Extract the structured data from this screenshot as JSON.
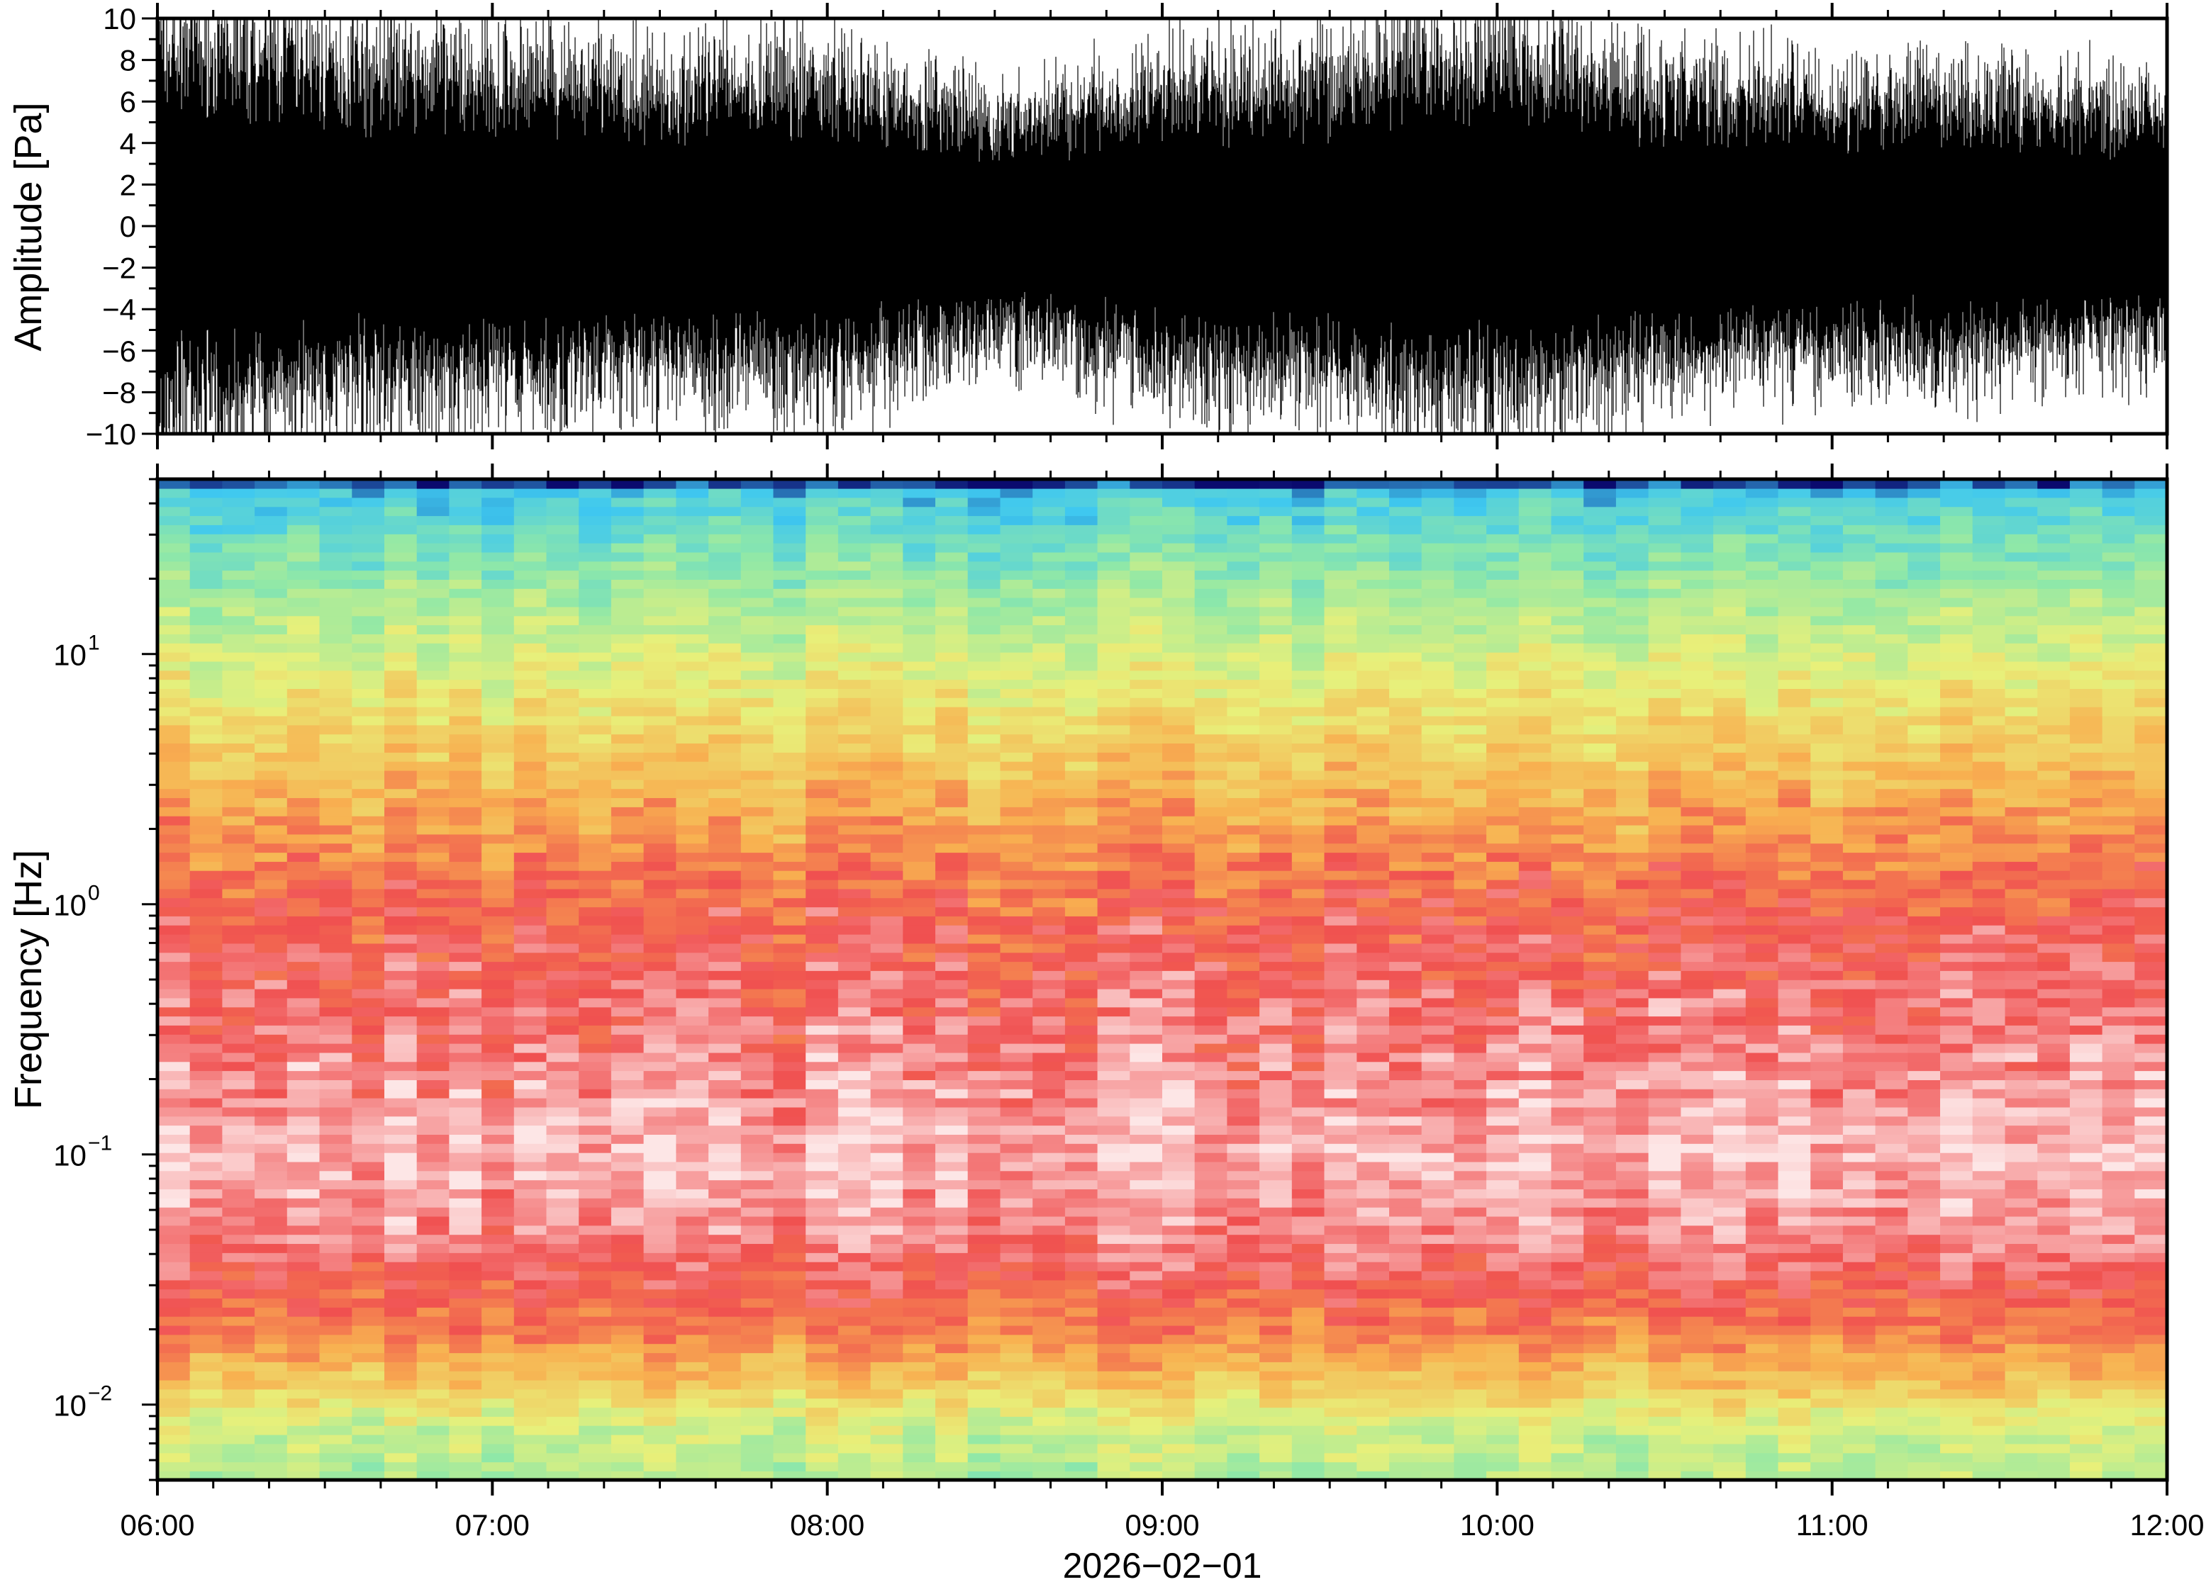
{
  "chart_data": [
    {
      "type": "line",
      "title": "",
      "ylabel": "Amplitude [Pa]",
      "ylim": [
        -10,
        10
      ],
      "yticks": [
        "10",
        "8",
        "6",
        "4",
        "2",
        "0",
        "−2",
        "−4",
        "−6",
        "−8",
        "−10"
      ],
      "ytick_values": [
        10,
        8,
        6,
        4,
        2,
        0,
        -2,
        -4,
        -6,
        -8,
        -10
      ],
      "x_range_hours": [
        6,
        12
      ],
      "envelope_hours": [
        6.0,
        6.5,
        7.0,
        7.5,
        8.0,
        8.5,
        9.0,
        9.5,
        10.0,
        10.5,
        11.0,
        11.5,
        12.0
      ],
      "envelope_pa": [
        8,
        7,
        6.5,
        6,
        6.5,
        4.5,
        6,
        6.5,
        7.5,
        6,
        5.5,
        5.5,
        5
      ]
    },
    {
      "type": "heatmap",
      "ylabel": "Frequency [Hz]",
      "yscale": "log",
      "ylim": [
        0.005,
        50
      ],
      "yticks": [
        {
          "base": "10",
          "exp": "1",
          "value": 10
        },
        {
          "base": "10",
          "exp": "0",
          "value": 1
        },
        {
          "base": "10",
          "exp": "−1",
          "value": 0.1
        },
        {
          "base": "10",
          "exp": "−2",
          "value": 0.01
        }
      ],
      "xlabel": "2026−02−01",
      "xticks": [
        "06:00",
        "07:00",
        "08:00",
        "09:00",
        "10:00",
        "11:00",
        "12:00"
      ],
      "x_range_hours": [
        6,
        12
      ],
      "columns": 62,
      "profile_freq_hz": [
        49,
        45,
        30,
        15,
        8,
        3,
        1,
        0.3,
        0.1,
        0.05,
        0.03,
        0.02,
        0.012,
        0.008,
        0.005
      ],
      "profile_level": [
        0.0,
        0.18,
        0.27,
        0.4,
        0.5,
        0.64,
        0.8,
        0.88,
        0.95,
        0.9,
        0.82,
        0.75,
        0.6,
        0.45,
        0.4
      ],
      "colormap": [
        "#0a0a6e",
        "#3fc8f0",
        "#8fe8a8",
        "#e8f07a",
        "#f8b050",
        "#f05050",
        "#fde6e6"
      ]
    }
  ]
}
